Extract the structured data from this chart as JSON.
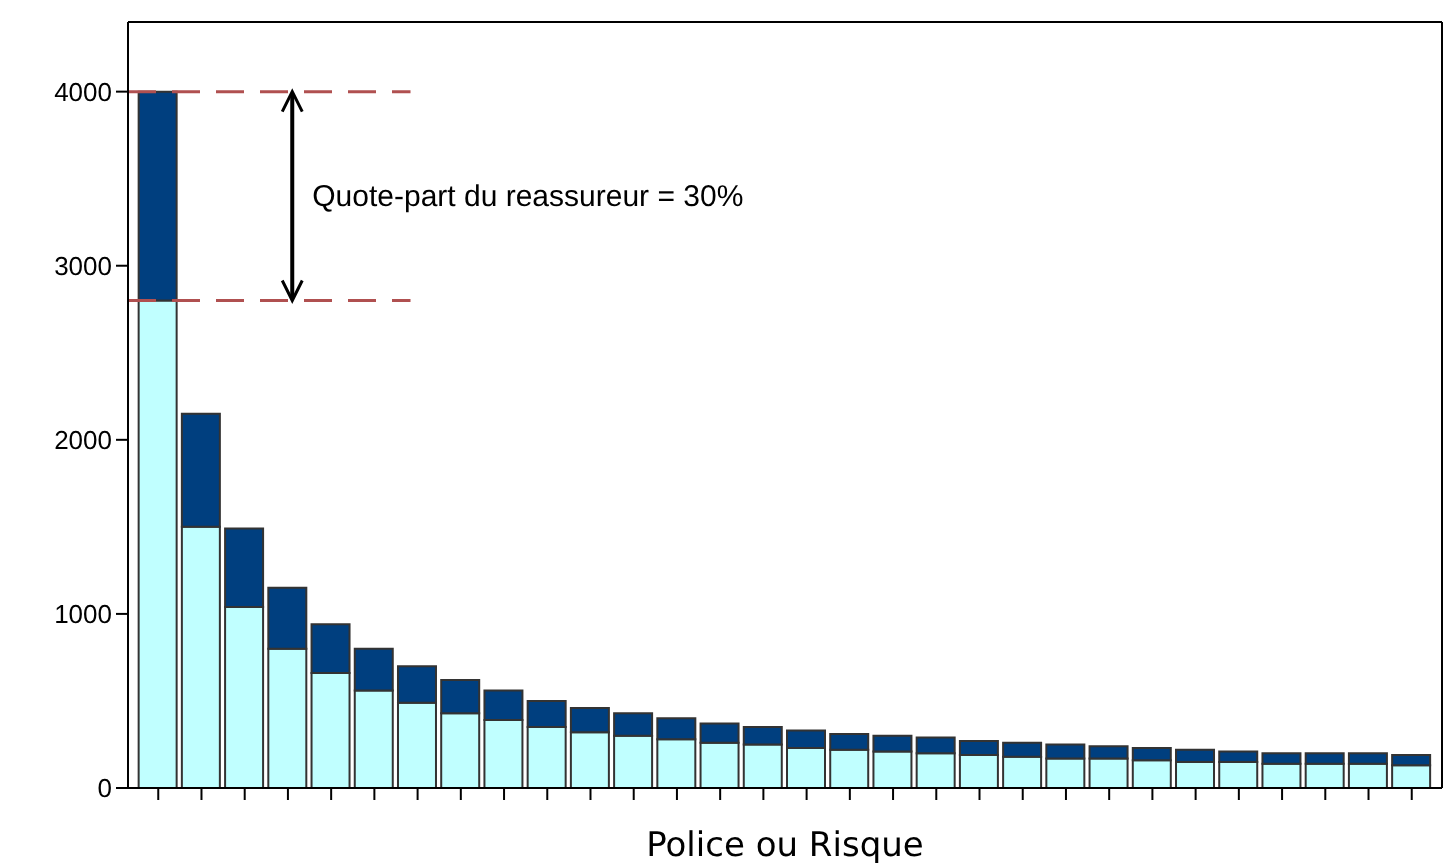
{
  "chart_data": {
    "type": "bar",
    "stacked": true,
    "xlabel": "Police ou Risque",
    "categories": [
      null,
      null,
      null,
      null,
      null,
      null,
      null,
      null,
      null,
      null,
      null,
      null,
      null,
      null,
      null,
      null,
      null,
      null,
      null,
      null,
      null,
      null,
      null,
      null,
      null,
      null,
      null,
      null,
      null,
      null
    ],
    "series": [
      {
        "color": "#c0ffff",
        "values": [
          2800,
          1500,
          1040,
          800,
          660,
          560,
          490,
          430,
          390,
          350,
          320,
          300,
          280,
          260,
          250,
          230,
          220,
          210,
          200,
          190,
          180,
          170,
          170,
          160,
          150,
          150,
          140,
          140,
          140,
          130
        ]
      },
      {
        "color": "#003f7f",
        "values": [
          1200,
          650,
          450,
          350,
          280,
          240,
          210,
          190,
          170,
          150,
          140,
          130,
          120,
          110,
          100,
          100,
          90,
          90,
          90,
          80,
          80,
          80,
          70,
          70,
          70,
          60,
          60,
          60,
          60,
          60
        ]
      }
    ],
    "ylim": [
      0,
      4400
    ],
    "yticks": [
      0,
      1000,
      2000,
      3000,
      4000
    ],
    "grid": false,
    "legend": false,
    "ref_lines": [
      {
        "axis": "y",
        "value": 4000,
        "color": "#b05050",
        "line_style": "dashed"
      },
      {
        "axis": "y",
        "value": 2800,
        "color": "#b05050",
        "line_style": "dashed"
      }
    ],
    "annotations": [
      "Quote-part du reassureur = 30%"
    ]
  }
}
